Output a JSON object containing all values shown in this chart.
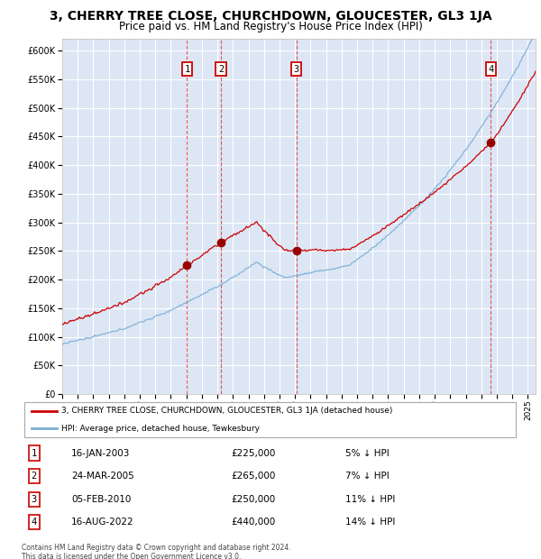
{
  "title": "3, CHERRY TREE CLOSE, CHURCHDOWN, GLOUCESTER, GL3 1JA",
  "subtitle": "Price paid vs. HM Land Registry's House Price Index (HPI)",
  "ylim": [
    0,
    620000
  ],
  "yticks": [
    0,
    50000,
    100000,
    150000,
    200000,
    250000,
    300000,
    350000,
    400000,
    450000,
    500000,
    550000,
    600000
  ],
  "xlim_start": 1995.0,
  "xlim_end": 2025.5,
  "bg_color": "#dce6f5",
  "grid_color": "#ffffff",
  "hpi_line_color": "#7aafd4",
  "price_line_color": "#cc0000",
  "sale_marker_color": "#990000",
  "vline_color": "#dd3333",
  "box_color": "#cc0000",
  "title_fontsize": 10,
  "subtitle_fontsize": 8.5,
  "sales": [
    {
      "label": "1",
      "date_num": 2003.04,
      "price": 225000
    },
    {
      "label": "2",
      "date_num": 2005.23,
      "price": 265000
    },
    {
      "label": "3",
      "date_num": 2010.09,
      "price": 250000
    },
    {
      "label": "4",
      "date_num": 2022.62,
      "price": 440000
    }
  ],
  "legend_entries": [
    "3, CHERRY TREE CLOSE, CHURCHDOWN, GLOUCESTER, GL3 1JA (detached house)",
    "HPI: Average price, detached house, Tewkesbury"
  ],
  "table_entries": [
    {
      "num": "1",
      "date": "16-JAN-2003",
      "price": "£225,000",
      "note": "5% ↓ HPI"
    },
    {
      "num": "2",
      "date": "24-MAR-2005",
      "price": "£265,000",
      "note": "7% ↓ HPI"
    },
    {
      "num": "3",
      "date": "05-FEB-2010",
      "price": "£250,000",
      "note": "11% ↓ HPI"
    },
    {
      "num": "4",
      "date": "16-AUG-2022",
      "price": "£440,000",
      "note": "14% ↓ HPI"
    }
  ],
  "footnote": "Contains HM Land Registry data © Crown copyright and database right 2024.\nThis data is licensed under the Open Government Licence v3.0."
}
